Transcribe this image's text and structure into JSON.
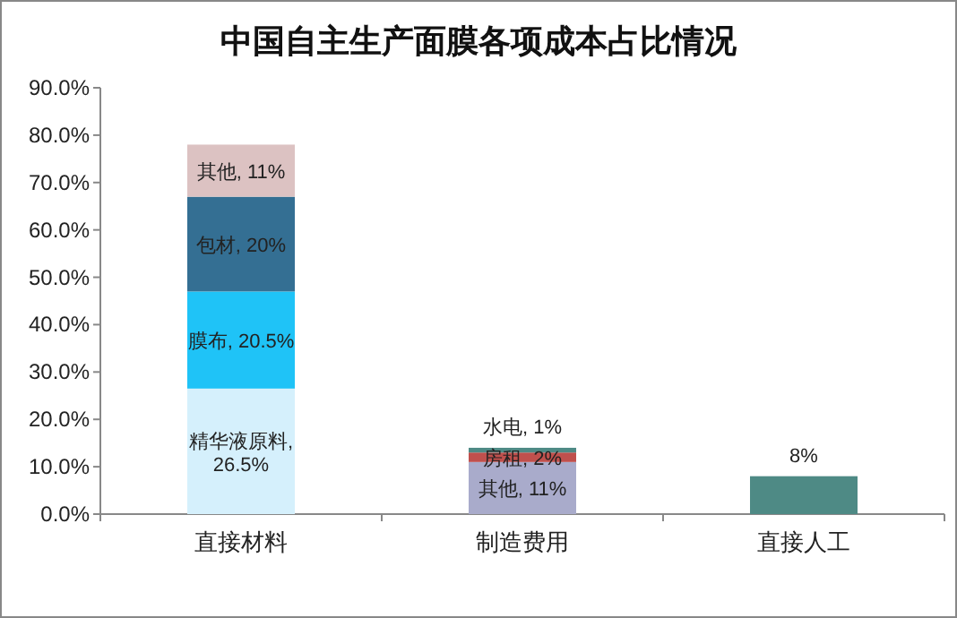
{
  "chart_data": {
    "type": "bar",
    "title": "中国自主生产面膜各项成本占比情况",
    "stacked": true,
    "categories": [
      "直接材料",
      "制造费用",
      "直接人工"
    ],
    "ylim": [
      0,
      90
    ],
    "yticks": [
      {
        "value": 0,
        "label": "0.0%"
      },
      {
        "value": 10,
        "label": "10.0%"
      },
      {
        "value": 20,
        "label": "20.0%"
      },
      {
        "value": 30,
        "label": "30.0%"
      },
      {
        "value": 40,
        "label": "40.0%"
      },
      {
        "value": 50,
        "label": "50.0%"
      },
      {
        "value": 60,
        "label": "60.0%"
      },
      {
        "value": 70,
        "label": "70.0%"
      },
      {
        "value": 80,
        "label": "80.0%"
      },
      {
        "value": 90,
        "label": "90.0%"
      }
    ],
    "series": [
      {
        "colors": [
          "#d5f0fc",
          "#a9abcb",
          "#4e8a85"
        ],
        "values": [
          26.5,
          11,
          8
        ],
        "value_labels": [
          "精华液原料, 26.5%",
          "其他, 11%",
          "8%"
        ]
      },
      {
        "colors": [
          "#1fc3f7",
          "#c0504d",
          null
        ],
        "values": [
          20.5,
          2,
          null
        ],
        "value_labels": [
          "膜布, 20.5%",
          "房租, 2%",
          null
        ]
      },
      {
        "colors": [
          "#346f93",
          "#4e8a85",
          null
        ],
        "values": [
          20,
          1,
          null
        ],
        "value_labels": [
          "包材, 20%",
          "水电, 1%",
          null
        ]
      },
      {
        "colors": [
          "#dcc2c2",
          null,
          null
        ],
        "values": [
          11,
          null,
          null
        ],
        "value_labels": [
          "其他, 11%",
          null,
          null
        ]
      }
    ]
  }
}
